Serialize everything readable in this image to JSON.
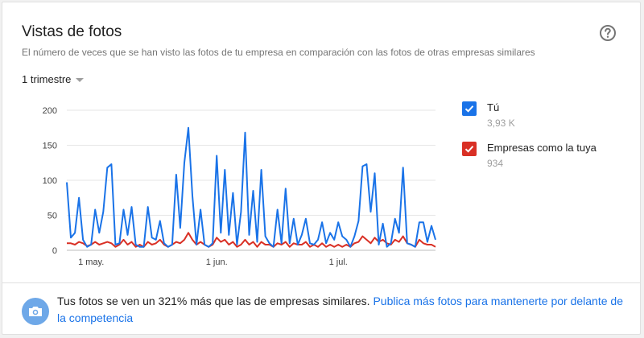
{
  "card": {
    "title": "Vistas de fotos",
    "subtitle": "El número de veces que se han visto las fotos de tu empresa en comparación con las fotos de otras empresas similares",
    "help_icon": "help-circle-icon"
  },
  "period_selector": {
    "label": "1 trimestre"
  },
  "legend": {
    "items": [
      {
        "name": "Tú",
        "value": "3,93 K",
        "color": "#1a73e8"
      },
      {
        "name": "Empresas como la tuya",
        "value": "934",
        "color": "#d93025"
      }
    ]
  },
  "footer": {
    "text": "Tus fotos se ven un 321% más que las de empresas similares.",
    "link": "Publica más fotos para mantenerte por delante de la competencia",
    "icon": "camera-icon"
  },
  "chart_data": {
    "type": "line",
    "y_ticks": [
      "200",
      "150",
      "100",
      "50",
      "0"
    ],
    "ylim": [
      0,
      200
    ],
    "x_tick_labels": [
      {
        "label": "1 may.",
        "index": 6
      },
      {
        "label": "1 jun.",
        "index": 37
      },
      {
        "label": "1 jul.",
        "index": 67
      }
    ],
    "grid": true,
    "legend_placement": "right",
    "series": [
      {
        "name": "Tú",
        "color": "#1a73e8",
        "values": [
          97,
          18,
          25,
          75,
          15,
          5,
          8,
          58,
          25,
          55,
          118,
          123,
          8,
          10,
          58,
          22,
          62,
          8,
          5,
          5,
          62,
          18,
          15,
          42,
          10,
          5,
          8,
          108,
          32,
          125,
          175,
          78,
          8,
          58,
          8,
          5,
          10,
          135,
          25,
          115,
          22,
          82,
          8,
          55,
          168,
          22,
          85,
          12,
          115,
          20,
          10,
          5,
          58,
          10,
          88,
          10,
          45,
          8,
          22,
          45,
          10,
          8,
          15,
          40,
          10,
          25,
          15,
          40,
          20,
          15,
          5,
          20,
          42,
          120,
          123,
          55,
          110,
          8,
          38,
          5,
          10,
          45,
          25,
          118,
          10,
          8,
          5,
          40,
          40,
          12,
          35,
          15
        ]
      },
      {
        "name": "Empresas como la tuya",
        "color": "#d93025",
        "values": [
          10,
          10,
          8,
          12,
          10,
          6,
          8,
          12,
          8,
          10,
          12,
          10,
          5,
          8,
          15,
          8,
          12,
          5,
          8,
          5,
          12,
          8,
          10,
          15,
          8,
          5,
          8,
          12,
          10,
          15,
          25,
          15,
          8,
          12,
          8,
          5,
          8,
          18,
          12,
          15,
          8,
          12,
          5,
          8,
          15,
          8,
          12,
          5,
          12,
          8,
          8,
          5,
          10,
          8,
          12,
          5,
          10,
          8,
          8,
          12,
          5,
          8,
          5,
          10,
          5,
          8,
          5,
          8,
          5,
          8,
          5,
          10,
          12,
          20,
          15,
          10,
          18,
          12,
          15,
          10,
          8,
          15,
          12,
          20,
          10,
          8,
          5,
          15,
          10,
          8,
          8,
          5
        ]
      }
    ]
  }
}
